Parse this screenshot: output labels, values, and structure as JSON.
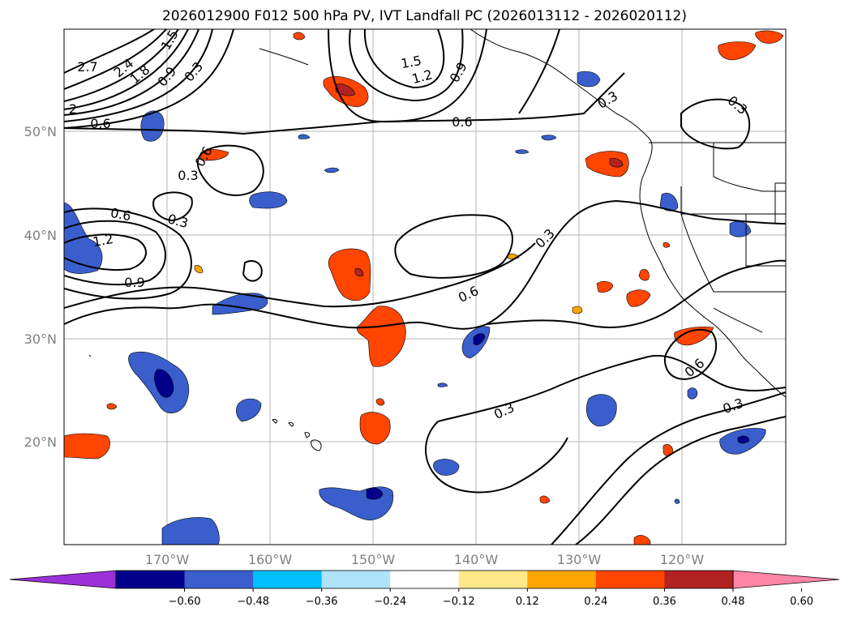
{
  "title": "2026012900 F012 500 hPa PV, IVT Landfall PC (2026013112 - 2026020112)",
  "latitude_labels": [
    "50°N",
    "40°N",
    "30°N",
    "20°N"
  ],
  "longitude_labels": [
    "170°W",
    "160°W",
    "150°W",
    "140°W",
    "130°W",
    "120°W"
  ],
  "colorbar": {
    "ticks": [
      "−0.60",
      "−0.48",
      "−0.36",
      "−0.24",
      "−0.12",
      "0.12",
      "0.24",
      "0.36",
      "0.48",
      "0.60"
    ],
    "colors": [
      "#9b30d9",
      "#00008b",
      "#3a5fcd",
      "#00bfff",
      "#ade3fb",
      "#ffffff",
      "#ffe88a",
      "#ffa500",
      "#ff4500",
      "#b22222",
      "#ff85a6"
    ]
  },
  "contour_labels": [
    "2.7",
    "2.4",
    "1.8",
    "1.5",
    "0.9",
    "0.3",
    "2",
    "0.6",
    "1.5",
    "1.2",
    "0.9",
    "0.6",
    "0.3",
    "0.3",
    "0.6",
    "0.3",
    "0.6",
    "1.2",
    "0.9",
    "0.3",
    "0.6",
    "0.3",
    "0.6",
    "0.3",
    "0.3"
  ]
}
